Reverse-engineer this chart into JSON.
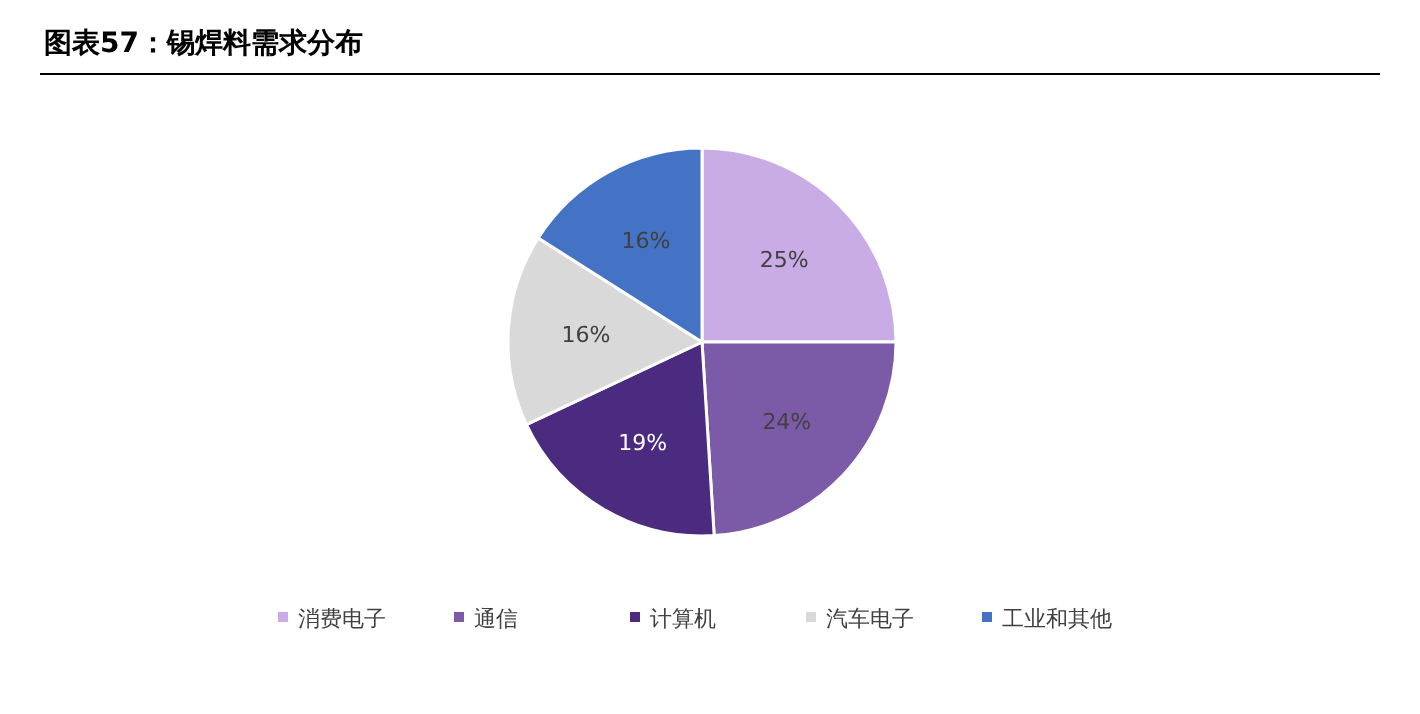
{
  "chart_data": {
    "type": "pie",
    "title": "图表57：锡焊料需求分布",
    "categories": [
      "消费电子",
      "通信",
      "计算机",
      "汽车电子",
      "工业和其他"
    ],
    "values": [
      25,
      24,
      19,
      16,
      16
    ],
    "colors": [
      "#c9ace6",
      "#7b5ba8",
      "#4a2b7f",
      "#d9d9d9",
      "#4472c4"
    ],
    "value_labels": [
      "25%",
      "24%",
      "19%",
      "16%",
      "16%"
    ],
    "legend": "bottom"
  }
}
